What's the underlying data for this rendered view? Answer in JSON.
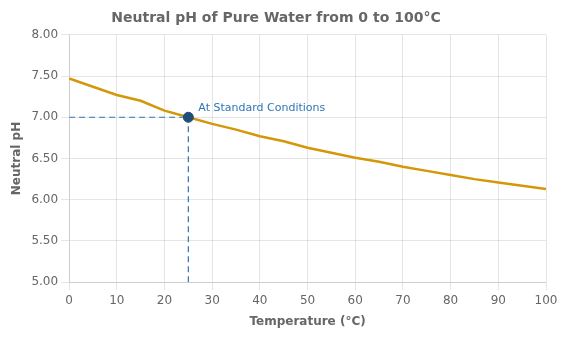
{
  "chart_data": {
    "type": "line",
    "title": "Neutral pH of Pure Water from 0 to 100°C",
    "x_label": "Temperature (°C)",
    "y_label": "Neutral pH",
    "x": [
      0,
      5,
      10,
      15,
      20,
      25,
      30,
      35,
      40,
      45,
      50,
      55,
      60,
      65,
      70,
      75,
      80,
      85,
      90,
      95,
      100
    ],
    "values": [
      7.47,
      7.37,
      7.27,
      7.2,
      7.08,
      7.0,
      6.92,
      6.85,
      6.77,
      6.71,
      6.63,
      6.57,
      6.51,
      6.46,
      6.4,
      6.35,
      6.3,
      6.25,
      6.21,
      6.17,
      6.13
    ],
    "color": "#D4970A",
    "xlim": [
      0,
      100
    ],
    "ylim": [
      5.0,
      8.0
    ],
    "xticks": [
      0,
      10,
      20,
      30,
      40,
      50,
      60,
      70,
      80,
      90,
      100
    ],
    "yticks": [
      {
        "value": 5.0,
        "label": "5.00"
      },
      {
        "value": 5.5,
        "label": "5.50"
      },
      {
        "value": 6.0,
        "label": "6.00"
      },
      {
        "value": 6.5,
        "label": "6.50"
      },
      {
        "value": 7.0,
        "label": "7.00"
      },
      {
        "value": 7.5,
        "label": "7.50"
      },
      {
        "value": 8.0,
        "label": "8.00"
      }
    ],
    "grid": true,
    "annotations": [
      {
        "text": "At Standard Conditions",
        "x": 25,
        "y": 7.0,
        "color": "#2E75B6",
        "line_style": "dashed",
        "marker_color": "#1F4E79"
      }
    ]
  }
}
